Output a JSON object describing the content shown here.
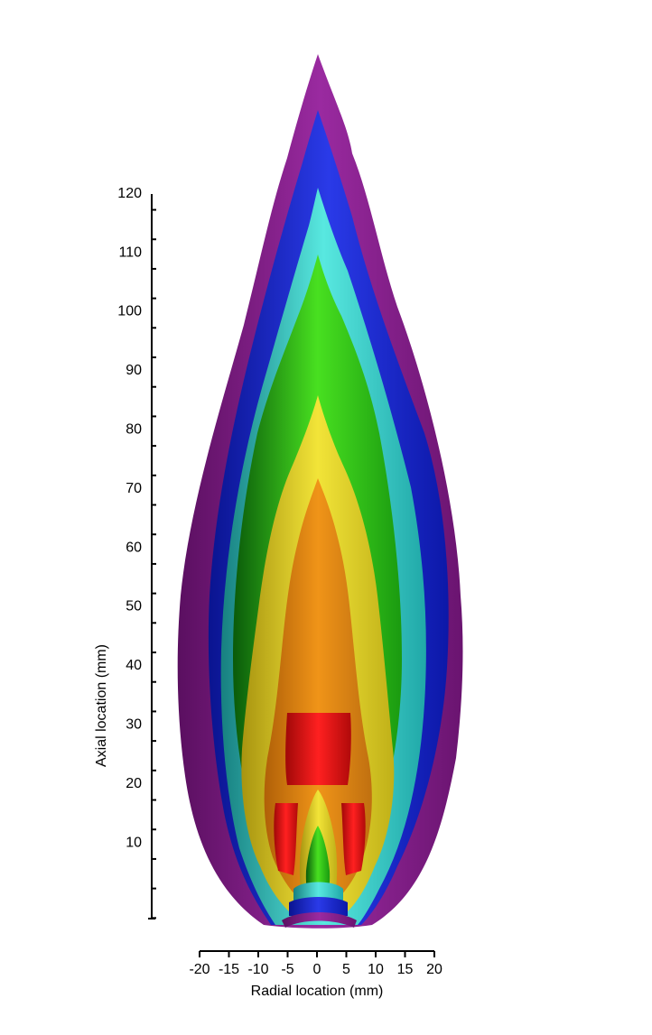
{
  "chart_data": {
    "type": "contour",
    "title": "",
    "xlabel": "Radial location (mm)",
    "ylabel": "Axial location (mm)",
    "xlim": [
      -20,
      20
    ],
    "ylim": [
      -13,
      120
    ],
    "x_ticks": [
      "-20",
      "-15",
      "-10",
      "-5",
      "0",
      "5",
      "10",
      "15",
      "20"
    ],
    "y_ticks": [
      "10",
      "20",
      "30",
      "40",
      "50",
      "60",
      "70",
      "80",
      "90",
      "100",
      "110",
      "120"
    ],
    "grid": false,
    "legend": "none",
    "contour_levels": [
      {
        "name": "purple",
        "color": "#7a1a80",
        "max_height": 131
      },
      {
        "name": "blue",
        "color": "#1525c8",
        "max_height": 122
      },
      {
        "name": "cyan",
        "color": "#38c8c8",
        "max_height": 111
      },
      {
        "name": "green",
        "color": "#38c81a",
        "max_height": 100
      },
      {
        "name": "yellow",
        "color": "#e8d81e",
        "max_height": 86
      },
      {
        "name": "orange",
        "color": "#e88a12",
        "max_height": 71
      },
      {
        "name": "red",
        "color": "#e81010",
        "max_height": 31
      }
    ]
  }
}
